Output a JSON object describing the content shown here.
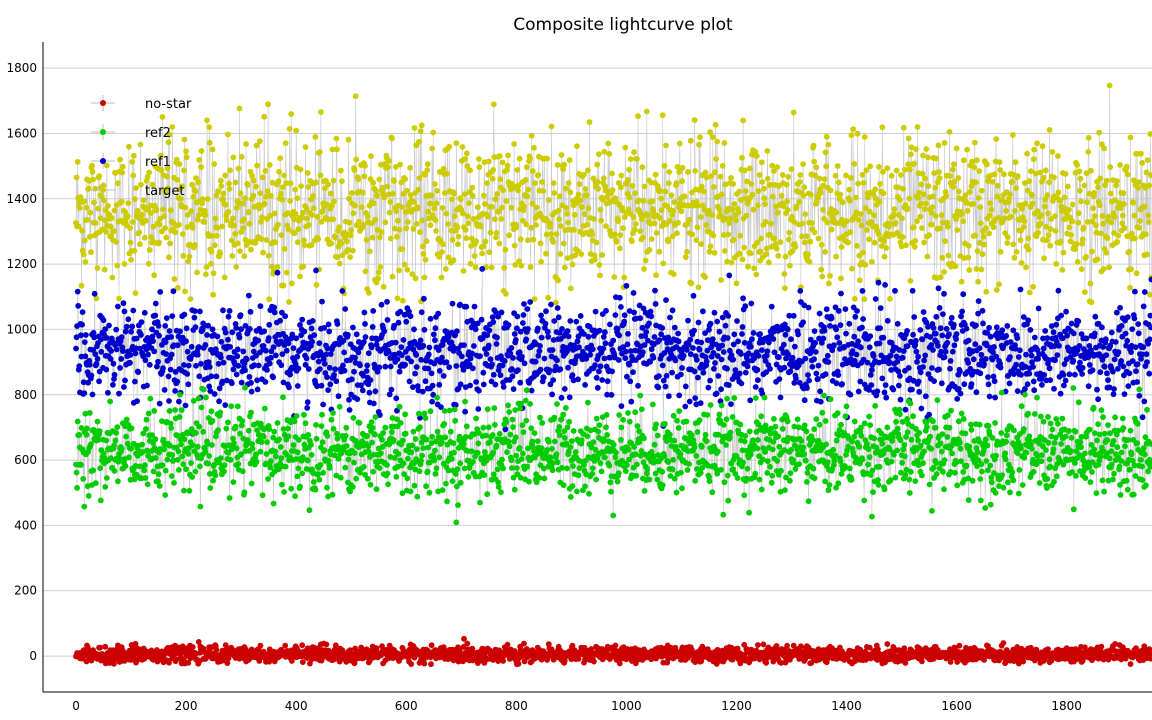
{
  "chart_data": {
    "type": "scatter",
    "title": "Composite lightcurve plot",
    "xlabel": "",
    "ylabel": "",
    "xlim": [
      -60,
      1955
    ],
    "ylim": [
      -110,
      1880
    ],
    "x_ticks": [
      0,
      200,
      400,
      600,
      800,
      1000,
      1200,
      1400,
      1600,
      1800
    ],
    "y_ticks": [
      0,
      200,
      400,
      600,
      800,
      1000,
      1200,
      1400,
      1600,
      1800
    ],
    "grid": "horizontal",
    "connecting_lines": true,
    "legend_position": "top-left",
    "n_points": 1955,
    "series": [
      {
        "name": "no-star",
        "color": "#cc0000",
        "mean": 5,
        "spread": 12,
        "min": -25,
        "max": 55
      },
      {
        "name": "ref2",
        "color": "#00cc00",
        "mean": 630,
        "spread": 65,
        "min": 330,
        "max": 830
      },
      {
        "name": "ref1",
        "color": "#0000cc",
        "mean": 930,
        "spread": 75,
        "min": 620,
        "max": 1190
      },
      {
        "name": "target",
        "color": "#cccc00",
        "mean": 1360,
        "spread": 110,
        "min": 1080,
        "max": 1820
      }
    ],
    "legend_order": [
      "no-star",
      "ref2",
      "ref1",
      "target"
    ]
  }
}
